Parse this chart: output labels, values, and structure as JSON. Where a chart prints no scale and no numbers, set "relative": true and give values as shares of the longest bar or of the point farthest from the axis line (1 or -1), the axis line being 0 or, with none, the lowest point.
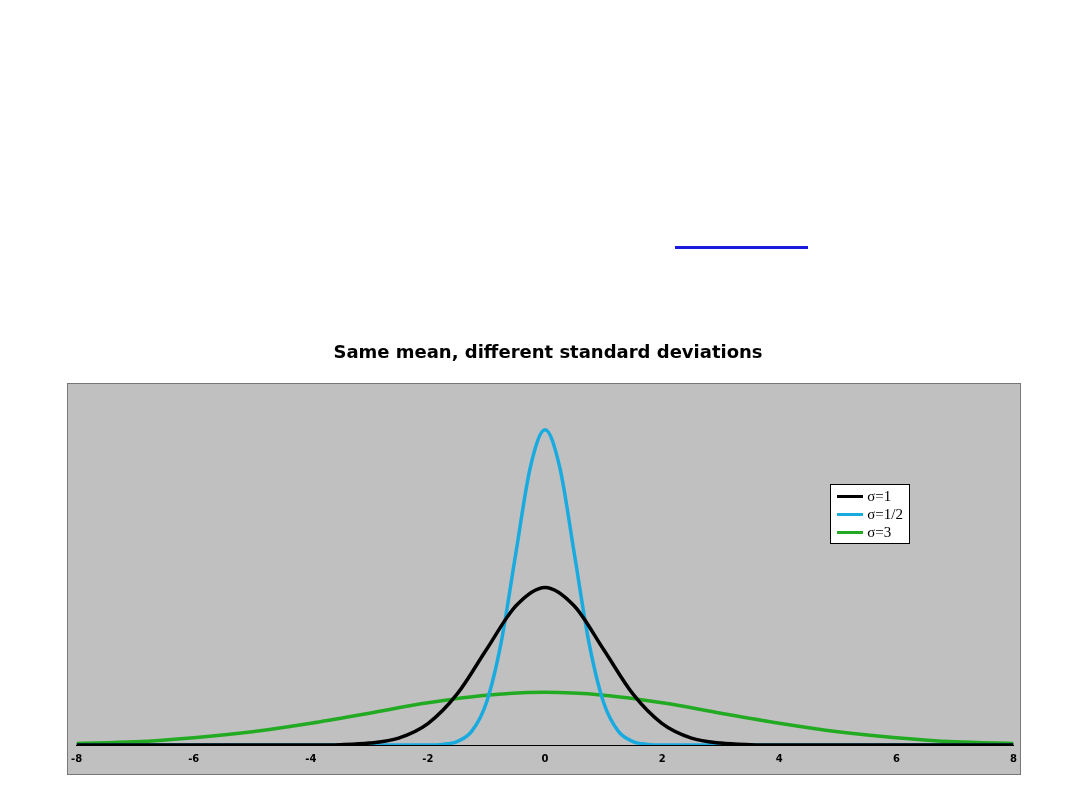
{
  "chart_data": {
    "type": "line",
    "title": "Same mean, different standard deviations",
    "relative": true,
    "xlim": [
      -8,
      8
    ],
    "xticks": [
      -8,
      -6,
      -4,
      -2,
      0,
      2,
      4,
      6,
      8
    ],
    "legend": "top right",
    "marker": "none",
    "grid": false,
    "tick_labels": "x",
    "series": [
      {
        "name": "σ=1",
        "color": "#000000",
        "x": [
          -8,
          -4,
          -3.5,
          -3,
          -2.5,
          -2,
          -1.5,
          -1,
          -0.5,
          0,
          0.5,
          1,
          1.5,
          2,
          2.5,
          3,
          3.5,
          4,
          8
        ],
        "values": [
          0,
          0,
          0.001,
          0.006,
          0.022,
          0.068,
          0.162,
          0.303,
          0.441,
          0.5,
          0.441,
          0.303,
          0.162,
          0.068,
          0.022,
          0.006,
          0.001,
          0,
          0
        ]
      },
      {
        "name": "σ=1/2",
        "color": "#19aadf",
        "x": [
          -8,
          -2,
          -1.75,
          -1.5,
          -1.25,
          -1,
          -0.75,
          -0.5,
          -0.25,
          0,
          0.25,
          0.5,
          0.75,
          1,
          1.25,
          1.5,
          1.75,
          2,
          8
        ],
        "values": [
          0,
          0,
          0.002,
          0.011,
          0.044,
          0.135,
          0.325,
          0.607,
          0.882,
          1,
          0.882,
          0.607,
          0.325,
          0.135,
          0.044,
          0.011,
          0.002,
          0,
          0
        ]
      },
      {
        "name": "σ=3",
        "color": "#22aa22",
        "x": [
          -8,
          -7,
          -6,
          -5,
          -4,
          -3,
          -2,
          -1,
          0,
          1,
          2,
          3,
          4,
          5,
          6,
          7,
          8
        ],
        "values": [
          0.005,
          0.01,
          0.023,
          0.042,
          0.069,
          0.101,
          0.134,
          0.158,
          0.167,
          0.158,
          0.134,
          0.101,
          0.069,
          0.042,
          0.023,
          0.01,
          0.005
        ]
      }
    ]
  }
}
